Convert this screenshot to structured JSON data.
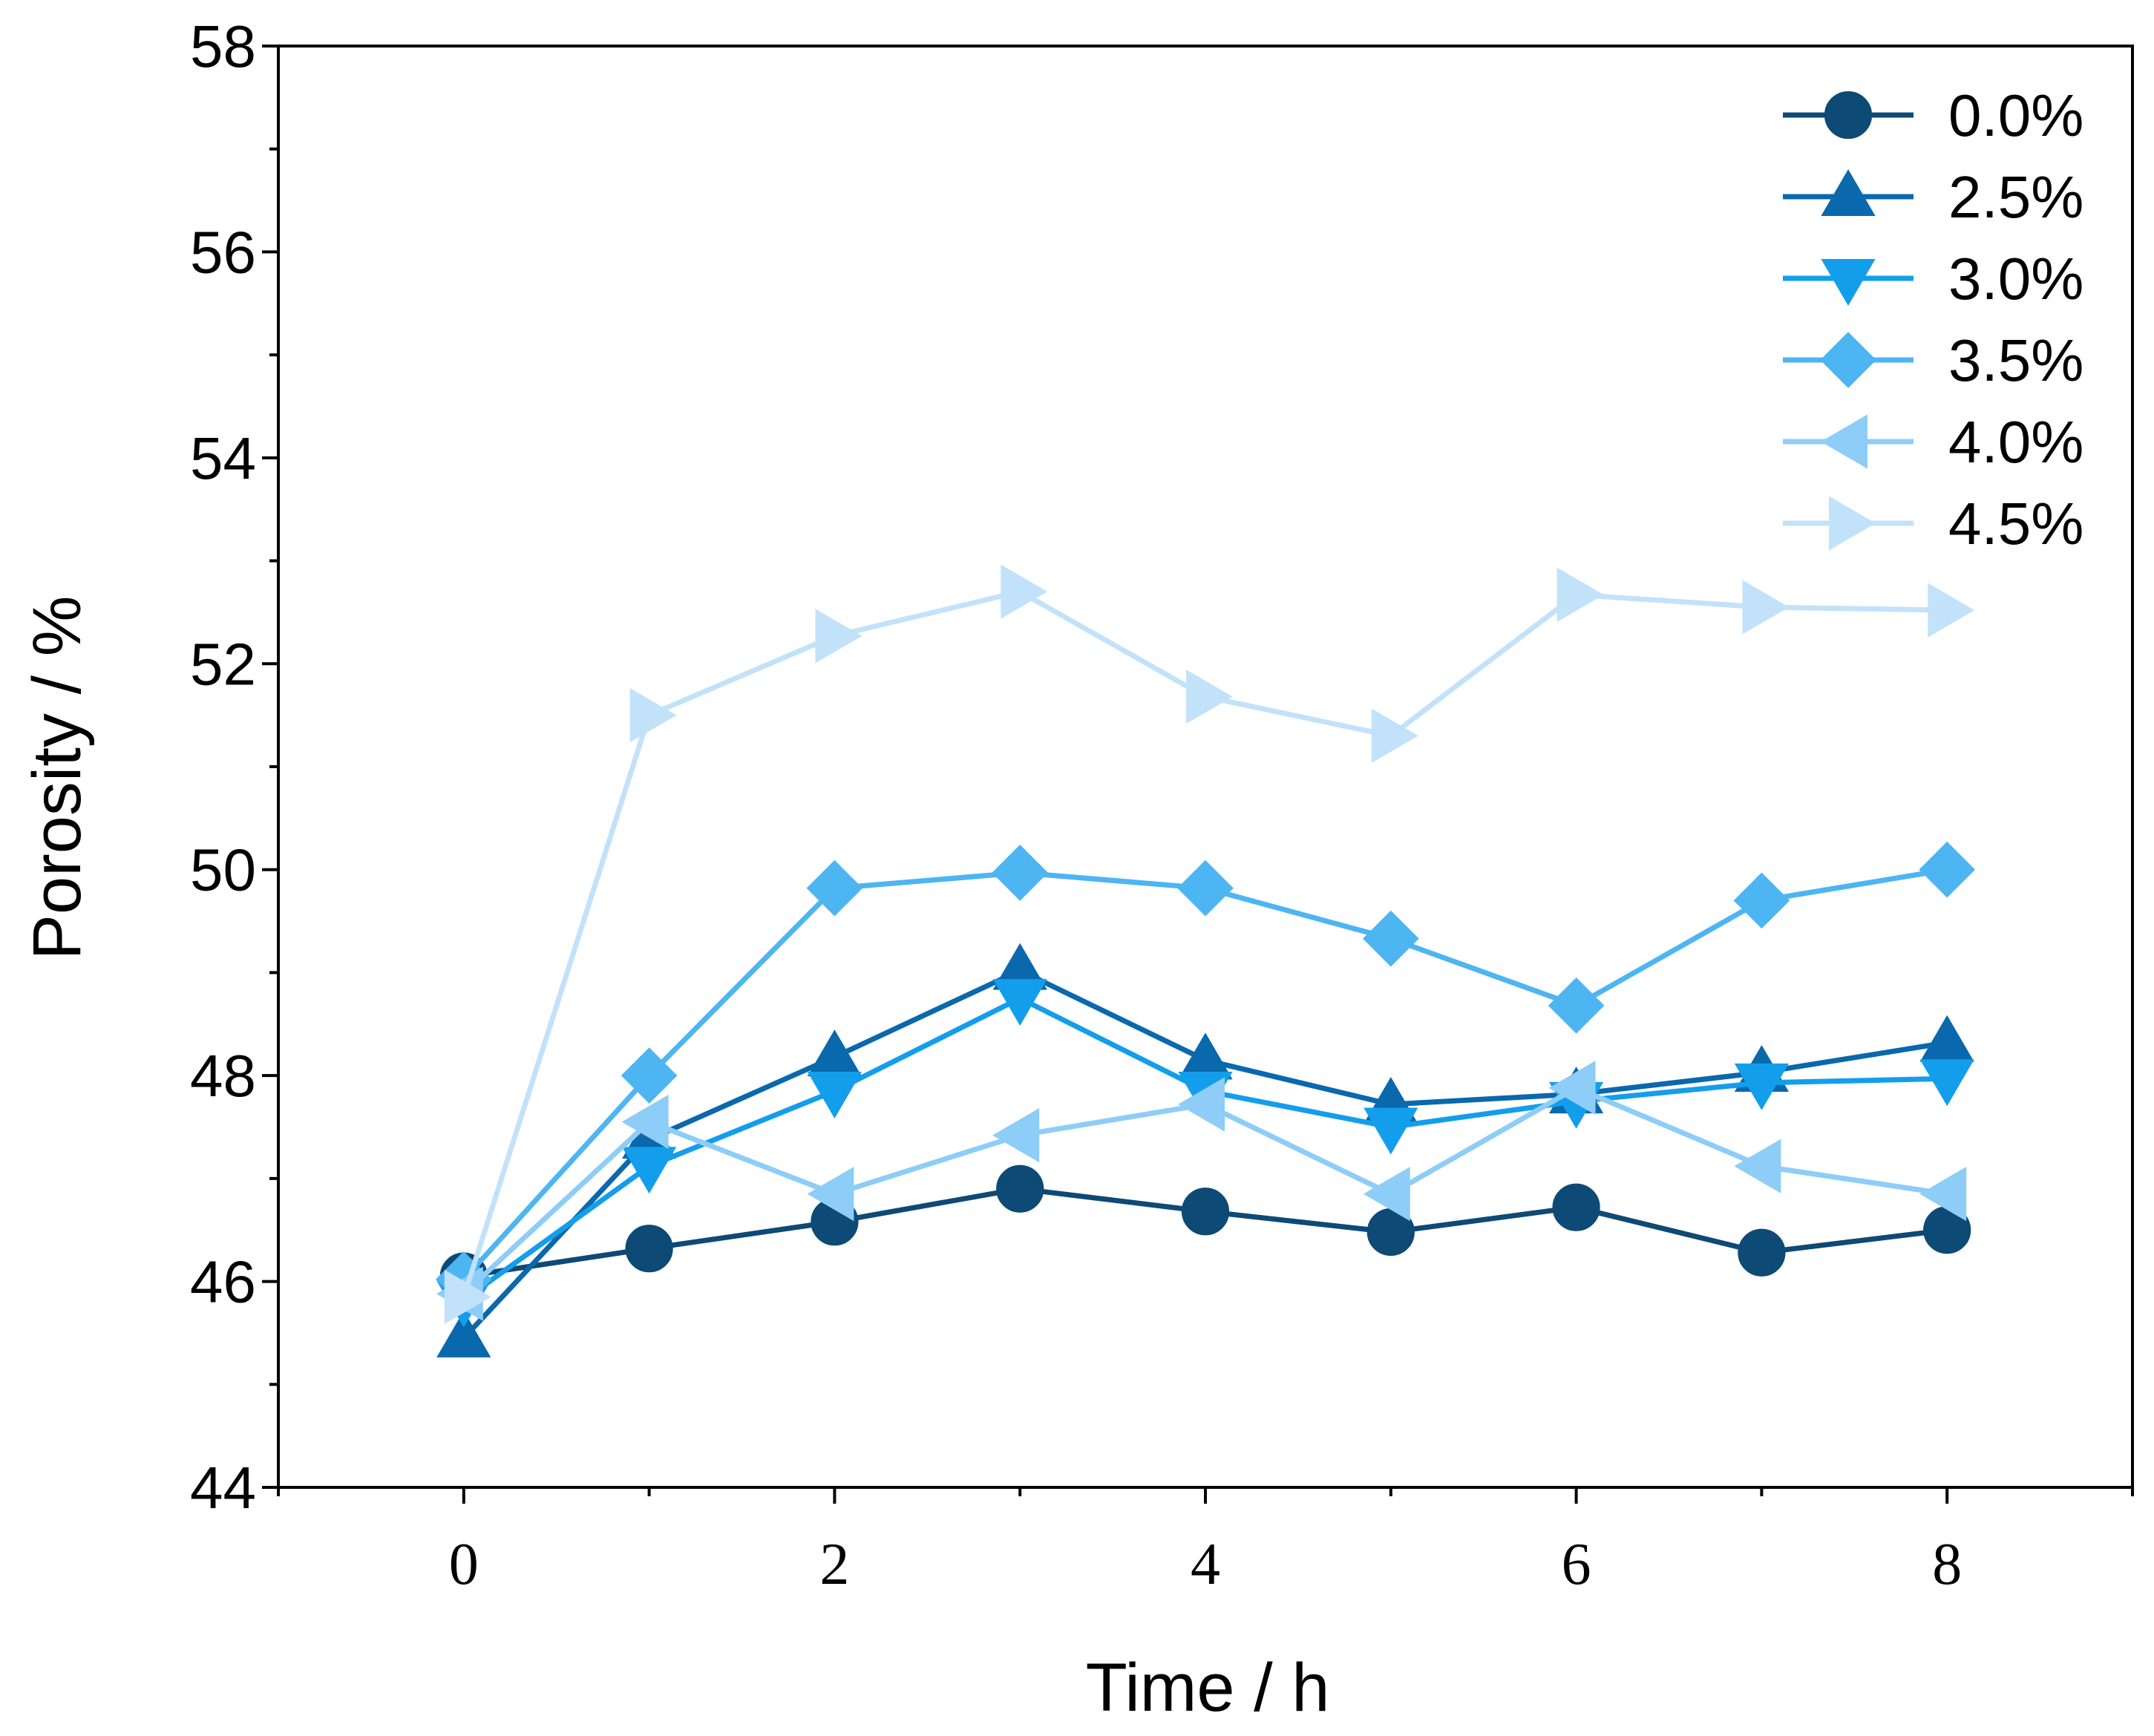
{
  "chart_data": {
    "type": "line",
    "title": "",
    "xlabel": "Time / h",
    "ylabel": "Porosity / %",
    "xlim": [
      -1,
      9
    ],
    "ylim": [
      44,
      58
    ],
    "x_ticks": [
      "0",
      "2",
      "4",
      "6",
      "8"
    ],
    "y_ticks": [
      "44",
      "46",
      "48",
      "50",
      "52",
      "54",
      "56",
      "58"
    ],
    "grid": false,
    "legend_position": "top-right",
    "x": [
      0,
      1,
      2,
      3,
      4,
      5,
      6,
      7,
      8
    ],
    "series": [
      {
        "name": "0.0%",
        "marker": "circle",
        "color": "#0d4a75",
        "values": [
          46.05,
          46.32,
          46.58,
          46.9,
          46.68,
          46.48,
          46.72,
          46.28,
          46.5
        ]
      },
      {
        "name": "2.5%",
        "marker": "triangle-up",
        "color": "#0a68ad",
        "values": [
          45.45,
          47.38,
          48.18,
          49.02,
          48.15,
          47.72,
          47.82,
          48.03,
          48.32
        ]
      },
      {
        "name": "3.0%",
        "marker": "triangle-down",
        "color": "#139eeb",
        "values": [
          45.82,
          47.12,
          47.85,
          48.75,
          47.85,
          47.5,
          47.75,
          47.93,
          47.97
        ]
      },
      {
        "name": "3.5%",
        "marker": "diamond",
        "color": "#4db5f2",
        "values": [
          46.02,
          48.0,
          49.82,
          49.97,
          49.82,
          49.33,
          48.68,
          49.7,
          50.0
        ]
      },
      {
        "name": "4.0%",
        "marker": "triangle-left",
        "color": "#8dcdf7",
        "values": [
          45.88,
          47.55,
          46.85,
          47.42,
          47.72,
          46.85,
          47.88,
          47.12,
          46.85
        ]
      },
      {
        "name": "4.5%",
        "marker": "triangle-right",
        "color": "#c2e2fa",
        "values": [
          45.85,
          51.5,
          52.27,
          52.7,
          51.68,
          51.3,
          52.67,
          52.55,
          52.52
        ]
      }
    ]
  }
}
